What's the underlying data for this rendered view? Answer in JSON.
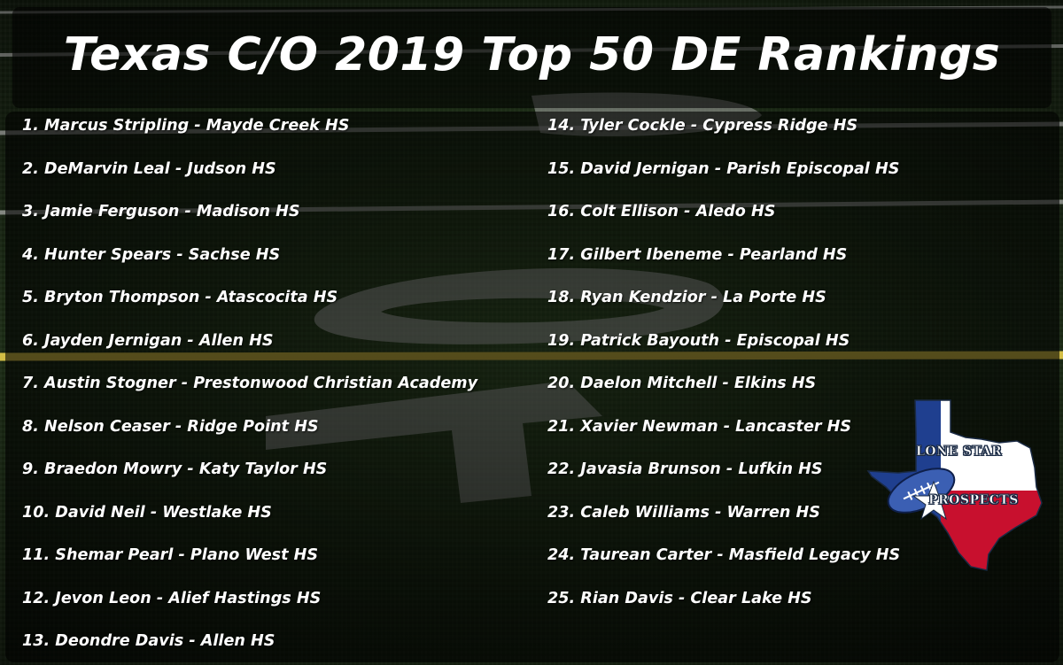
{
  "title": "Texas C/O 2019 Top 50 DE Rankings",
  "rankings_left": [
    "1. Marcus Stripling - Mayde Creek HS",
    "2. DeMarvin Leal - Judson HS",
    "3. Jamie Ferguson - Madison HS",
    "4. Hunter Spears - Sachse HS",
    "5. Bryton Thompson - Atascocita HS",
    "6. Jayden Jernigan - Allen HS",
    "7. Austin Stogner - Prestonwood Christian Academy",
    "8. Nelson Ceaser - Ridge Point HS",
    "9. Braedon Mowry - Katy Taylor HS",
    "10. David Neil - Westlake HS",
    "11. Shemar Pearl - Plano West HS",
    "12. Jevon Leon - Alief Hastings HS",
    "13. Deondre Davis - Allen HS"
  ],
  "rankings_right": [
    "14. Tyler Cockle - Cypress Ridge HS",
    "15. David Jernigan - Parish Episcopal HS",
    "16. Colt Ellison - Aledo HS",
    "17. Gilbert Ibeneme - Pearland HS",
    "18. Ryan Kendzior - La Porte HS",
    "19. Patrick Bayouth - Episcopal HS",
    "20. Daelon Mitchell - Elkins HS",
    "21. Xavier Newman - Lancaster HS",
    "22. Javasia Brunson - Lufkin HS",
    "23. Caleb Williams - Warren HS",
    "24. Taurean Carter - Masfield Legacy HS",
    "25. Rian Davis - Clear Lake HS"
  ],
  "logo": {
    "line1": "LONE STAR",
    "line2": "PROSPECTS"
  },
  "colors": {
    "flag_blue": "#1f3f8f",
    "flag_red": "#c8102e",
    "flag_white": "#ffffff",
    "text": "#ffffff",
    "turf": "#2f4a24"
  },
  "icons": [
    "texas-flag-map-logo",
    "football-icon",
    "star-icon"
  ]
}
